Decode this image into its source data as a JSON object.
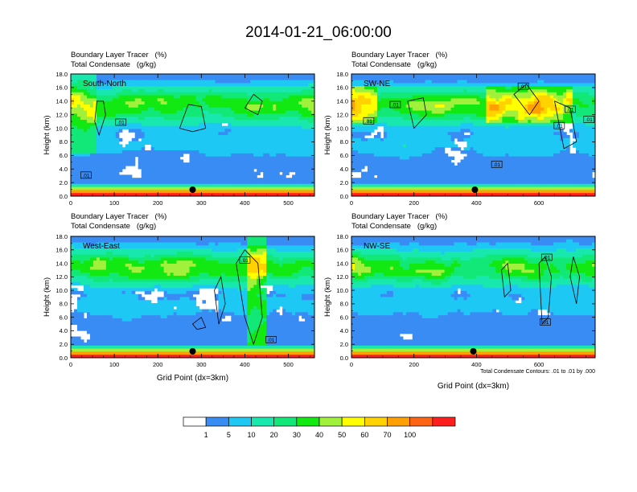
{
  "title": "2014-01-21_06:00:00",
  "panel_header_line1": "Boundary Layer Tracer   (%)",
  "panel_header_line2": "Total Condensate   (g/kg)",
  "y_axis_label": "Height (km)",
  "x_axis_label": "Grid Point (dx=3km)",
  "contour_note": "Total Condensate Contours: .01 to .01 by .000",
  "contour_label": ".01",
  "colorbar": {
    "colors": [
      "#ffffff",
      "#3a8cf5",
      "#1ec8f5",
      "#18e8ae",
      "#12e878",
      "#12e812",
      "#a0f03c",
      "#ffff00",
      "#ffd200",
      "#ffa000",
      "#ff6414",
      "#ff1e1e"
    ],
    "labels": [
      "1",
      "5",
      "10",
      "20",
      "30",
      "40",
      "50",
      "60",
      "70",
      "100"
    ]
  },
  "chart_data": [
    {
      "type": "heatmap",
      "name": "South-North",
      "xlim": [
        0,
        560
      ],
      "ylim": [
        0,
        18
      ],
      "x_ticks": [
        "0",
        "100",
        "200",
        "300",
        "400",
        "500"
      ],
      "x_tick_values": [
        0,
        100,
        200,
        300,
        400,
        500
      ],
      "y_ticks": [
        "0.0",
        "2.0",
        "4.0",
        "6.0",
        "8.0",
        "10.0",
        "12.0",
        "14.0",
        "16.0",
        "18.0"
      ],
      "marker_x": 280,
      "contour_labels": [
        {
          "x": 115,
          "y": 10.9
        },
        {
          "x": 35,
          "y": 3.1
        }
      ],
      "contours": [
        [
          [
            60,
            14
          ],
          [
            55,
            11
          ],
          [
            65,
            9
          ],
          [
            80,
            12
          ],
          [
            75,
            14
          ],
          [
            60,
            14
          ]
        ],
        [
          [
            250,
            10
          ],
          [
            270,
            13.5
          ],
          [
            300,
            13.2
          ],
          [
            310,
            10
          ],
          [
            280,
            9.5
          ],
          [
            250,
            10
          ]
        ],
        [
          [
            400,
            13
          ],
          [
            420,
            15
          ],
          [
            440,
            14
          ],
          [
            430,
            12
          ],
          [
            400,
            13
          ]
        ]
      ]
    },
    {
      "type": "heatmap",
      "name": "SW-NE",
      "xlim": [
        0,
        780
      ],
      "ylim": [
        0,
        18
      ],
      "x_ticks": [
        "0",
        "200",
        "400",
        "600"
      ],
      "x_tick_values": [
        0,
        200,
        400,
        600
      ],
      "y_ticks": [
        "0.0",
        "2.0",
        "4.0",
        "6.0",
        "8.0",
        "10.0",
        "12.0",
        "14.0",
        "16.0",
        "18.0"
      ],
      "marker_x": 395,
      "contour_labels": [
        {
          "x": 140,
          "y": 13.5
        },
        {
          "x": 55,
          "y": 11.1
        },
        {
          "x": 550,
          "y": 16.2
        },
        {
          "x": 700,
          "y": 12.8
        },
        {
          "x": 665,
          "y": 10.4
        },
        {
          "x": 760,
          "y": 11.3
        },
        {
          "x": 465,
          "y": 4.7
        }
      ],
      "contours": [
        [
          [
            180,
            14
          ],
          [
            200,
            10
          ],
          [
            240,
            12
          ],
          [
            230,
            14.5
          ],
          [
            180,
            14
          ]
        ],
        [
          [
            520,
            15
          ],
          [
            560,
            16.5
          ],
          [
            600,
            14
          ],
          [
            570,
            12
          ],
          [
            520,
            15
          ]
        ],
        [
          [
            650,
            14
          ],
          [
            700,
            13
          ],
          [
            720,
            8
          ],
          [
            680,
            7
          ],
          [
            650,
            14
          ]
        ]
      ]
    },
    {
      "type": "heatmap",
      "name": "West-East",
      "xlim": [
        0,
        560
      ],
      "ylim": [
        0,
        18
      ],
      "x_ticks": [
        "0",
        "100",
        "200",
        "300",
        "400",
        "500"
      ],
      "x_tick_values": [
        0,
        100,
        200,
        300,
        400,
        500
      ],
      "y_ticks": [
        "0.0",
        "2.0",
        "4.0",
        "6.0",
        "8.0",
        "10.0",
        "12.0",
        "14.0",
        "16.0",
        "18.0"
      ],
      "marker_x": 280,
      "contour_labels": [
        {
          "x": 400,
          "y": 14.5
        },
        {
          "x": 460,
          "y": 2.7
        }
      ],
      "contours": [
        [
          [
            380,
            14
          ],
          [
            400,
            16
          ],
          [
            430,
            14
          ],
          [
            440,
            6
          ],
          [
            420,
            2
          ],
          [
            400,
            6
          ],
          [
            380,
            14
          ]
        ],
        [
          [
            330,
            10
          ],
          [
            345,
            12
          ],
          [
            355,
            8
          ],
          [
            340,
            5
          ],
          [
            330,
            10
          ]
        ],
        [
          [
            280,
            5
          ],
          [
            300,
            6
          ],
          [
            310,
            4.5
          ],
          [
            290,
            4.2
          ],
          [
            280,
            5
          ]
        ]
      ]
    },
    {
      "type": "heatmap",
      "name": "NW-SE",
      "xlim": [
        0,
        780
      ],
      "ylim": [
        0,
        18
      ],
      "x_ticks": [
        "0",
        "200",
        "400",
        "600"
      ],
      "x_tick_values": [
        0,
        200,
        400,
        600
      ],
      "y_ticks": [
        "0.0",
        "2.0",
        "4.0",
        "6.0",
        "8.0",
        "10.0",
        "12.0",
        "14.0",
        "16.0",
        "18.0"
      ],
      "marker_x": 390,
      "contour_labels": [
        {
          "x": 620,
          "y": 5.3
        },
        {
          "x": 625,
          "y": 14.9
        }
      ],
      "contours": [
        [
          [
            600,
            14
          ],
          [
            620,
            15
          ],
          [
            640,
            12
          ],
          [
            630,
            6
          ],
          [
            610,
            5
          ],
          [
            600,
            14
          ]
        ],
        [
          [
            480,
            13
          ],
          [
            500,
            14
          ],
          [
            510,
            10
          ],
          [
            490,
            9
          ],
          [
            480,
            13
          ]
        ],
        [
          [
            700,
            12
          ],
          [
            710,
            15
          ],
          [
            730,
            12
          ],
          [
            720,
            8
          ],
          [
            700,
            12
          ]
        ]
      ]
    }
  ]
}
